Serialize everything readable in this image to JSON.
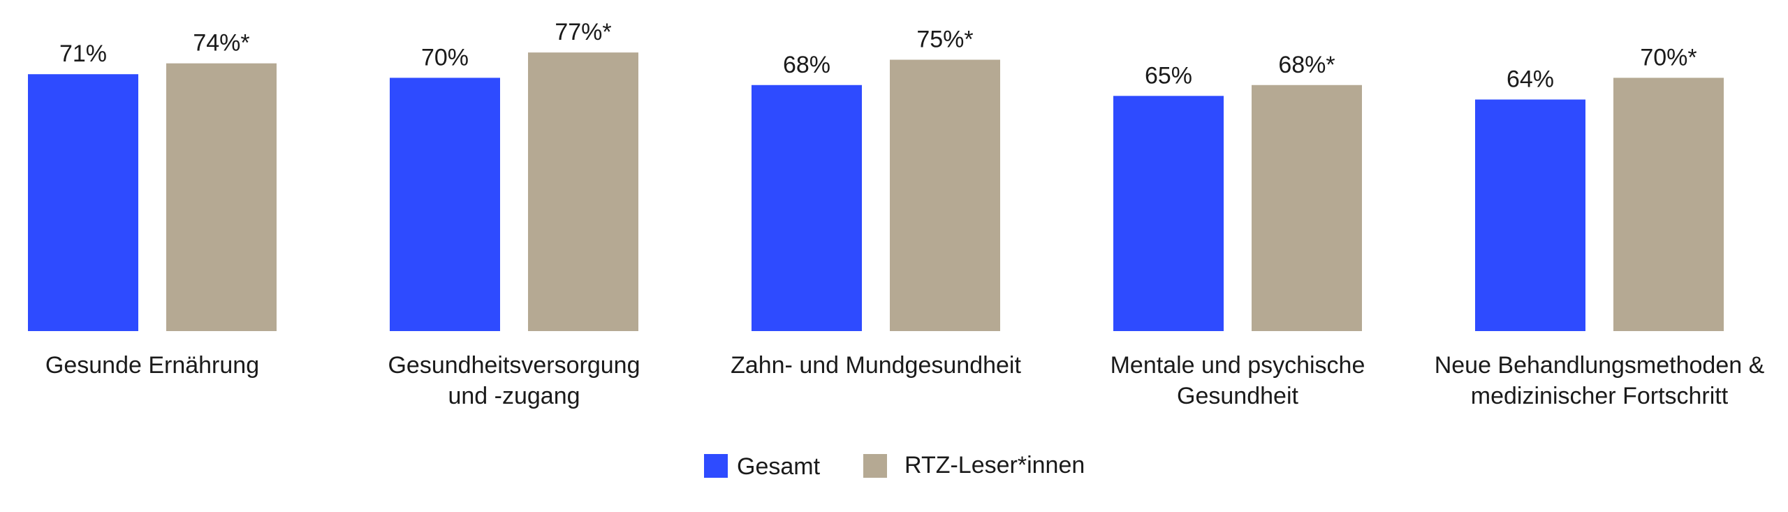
{
  "chart_data": {
    "type": "bar",
    "title": "",
    "xlabel": "",
    "ylabel": "",
    "ylim": [
      0,
      100
    ],
    "grid": false,
    "legend_position": "bottom-center",
    "categories": [
      [
        "Gesunde Ernährung"
      ],
      [
        "Gesundheitsversorgung",
        "und -zugang"
      ],
      [
        "Zahn- und Mundgesundheit"
      ],
      [
        "Mentale und psychische",
        "Gesundheit"
      ],
      [
        "Neue Behandlungsmethoden &",
        "medizinischer Fortschritt"
      ]
    ],
    "series": [
      {
        "name": "Gesamt",
        "color": "#2e4bff",
        "values": [
          71,
          70,
          68,
          65,
          64
        ],
        "labels": [
          "71%",
          "70%",
          "68%",
          "65%",
          "64%"
        ]
      },
      {
        "name": "RTZ-Leser*innen",
        "color": "#b5a993",
        "values": [
          74,
          77,
          75,
          68,
          70
        ],
        "labels": [
          "74%*",
          "77%*",
          "75%*",
          "68%*",
          "70%*"
        ]
      }
    ]
  }
}
